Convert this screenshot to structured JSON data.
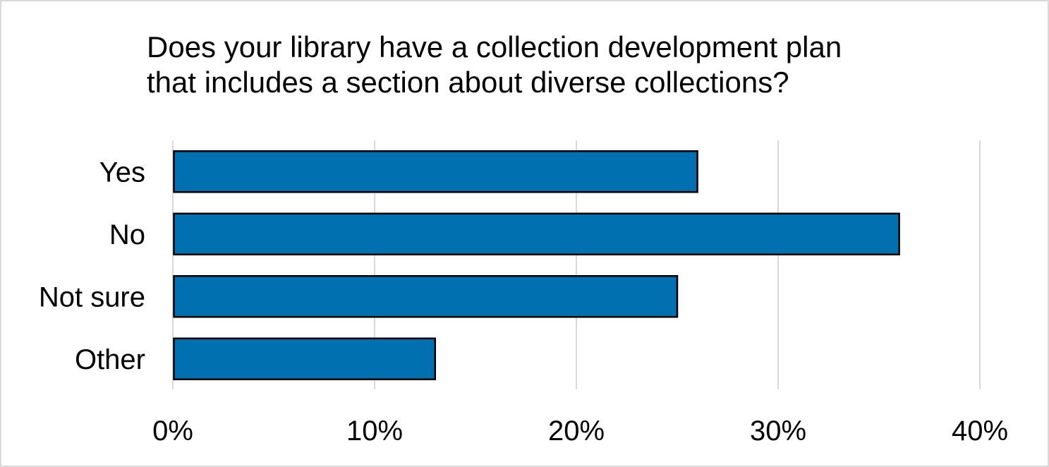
{
  "chart_data": {
    "type": "bar",
    "orientation": "horizontal",
    "title": "Does your library have a collection development plan that includes a section about diverse collections?",
    "title_lines": [
      "Does your library have a collection development plan",
      "that includes a section about diverse collections?"
    ],
    "categories": [
      "Yes",
      "No",
      "Not sure",
      "Other"
    ],
    "values": [
      26,
      36,
      25,
      13
    ],
    "value_unit": "%",
    "xlim": [
      0,
      40
    ],
    "x_ticks": [
      0,
      10,
      20,
      30,
      40
    ],
    "x_tick_labels": [
      "0%",
      "10%",
      "20%",
      "30%",
      "40%"
    ],
    "xlabel": "",
    "ylabel": "",
    "grid": "vertical gridlines",
    "legend": "none",
    "colors": {
      "bar_fill": "#0070b1",
      "bar_stroke": "#000000",
      "gridline": "#d9d9d9",
      "border": "#d9d9d9"
    }
  }
}
